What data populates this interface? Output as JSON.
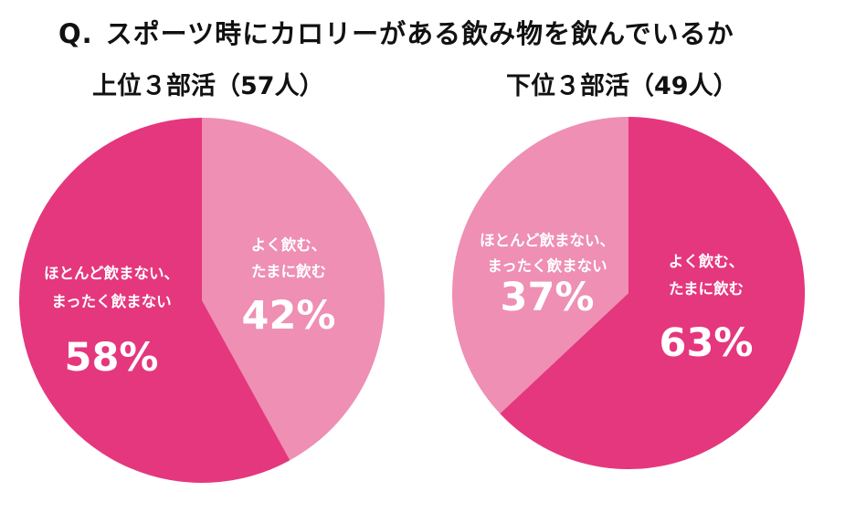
{
  "question": {
    "prefix": "Q.",
    "text": "スポーツ時にカロリーがある飲み物を飲んでいるか"
  },
  "colors": {
    "dark_pink": "#e5377d",
    "light_pink": "#ee8fb3",
    "label_text": "#ffffff"
  },
  "chart_data": [
    {
      "type": "pie",
      "title": "上位３部活（57人）",
      "slices": [
        {
          "label_lines": [
            "よく飲む、",
            "たまに飲む"
          ],
          "value": 42,
          "display": "42%",
          "color": "#ee8fb3"
        },
        {
          "label_lines": [
            "ほとんど飲まない、",
            "まったく飲まない"
          ],
          "value": 58,
          "display": "58%",
          "color": "#e5377d"
        }
      ]
    },
    {
      "type": "pie",
      "title": "下位３部活（49人）",
      "slices": [
        {
          "label_lines": [
            "よく飲む、",
            "たまに飲む"
          ],
          "value": 63,
          "display": "63%",
          "color": "#e5377d"
        },
        {
          "label_lines": [
            "ほとんど飲まない、",
            "まったく飲まない"
          ],
          "value": 37,
          "display": "37%",
          "color": "#ee8fb3"
        }
      ]
    }
  ]
}
